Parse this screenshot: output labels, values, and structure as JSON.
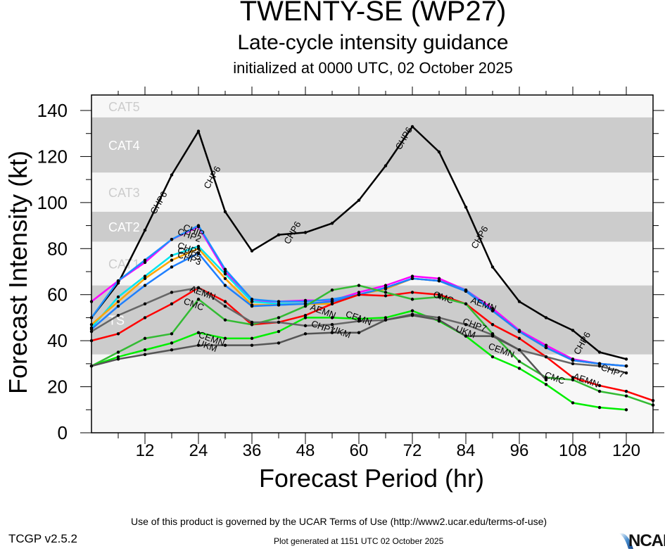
{
  "header": {
    "title": "TWENTY-SE (WP27)",
    "subtitle": "Late-cycle intensity guidance",
    "init_line": "initialized at 0000 UTC, 02 October 2025"
  },
  "footer": {
    "terms": "Use of this product is governed by the UCAR Terms of Use (http://www2.ucar.edu/terms-of-use)",
    "version": "TCGP v2.5.2",
    "generated": "Plot generated at 1151 UTC   02 October 2025",
    "logo": "NCAR"
  },
  "chart_data": {
    "type": "line",
    "title": "TWENTY-SE (WP27) Late-cycle intensity guidance",
    "xlabel": "Forecast Period (hr)",
    "ylabel": "Forecast Intensity (kt)",
    "xlim": [
      0,
      126
    ],
    "ylim": [
      0,
      147
    ],
    "xticks": [
      12,
      24,
      36,
      48,
      60,
      72,
      84,
      96,
      108,
      120
    ],
    "yticks": [
      0,
      20,
      40,
      60,
      80,
      100,
      120,
      140
    ],
    "grid": false,
    "legend": "inline line labels",
    "categories_bands": [
      {
        "name": "CAT5",
        "from": 137,
        "to": 147,
        "shade": "light"
      },
      {
        "name": "CAT4",
        "from": 113,
        "to": 137,
        "shade": "dark"
      },
      {
        "name": "CAT3",
        "from": 96,
        "to": 113,
        "shade": "light"
      },
      {
        "name": "CAT2",
        "from": 83,
        "to": 96,
        "shade": "dark"
      },
      {
        "name": "CAT1",
        "from": 64,
        "to": 83,
        "shade": "light"
      },
      {
        "name": "TS",
        "from": 34,
        "to": 64,
        "shade": "dark"
      },
      {
        "name": "",
        "from": 0,
        "to": 34,
        "shade": "light"
      }
    ],
    "band_colors": {
      "light": "#f7f7f7",
      "dark": "#cccccc"
    },
    "x": [
      0,
      6,
      12,
      18,
      24,
      30,
      36,
      42,
      48,
      54,
      60,
      66,
      72,
      78,
      84,
      90,
      96,
      102,
      108,
      114,
      120,
      126
    ],
    "series": [
      {
        "name": "CHP6",
        "color": "#000000",
        "values": [
          50,
          65,
          88,
          112,
          131,
          96,
          79,
          86,
          87,
          91,
          101,
          116,
          133,
          122,
          98,
          72,
          57,
          50,
          44.5,
          35,
          32,
          null
        ],
        "labels": [
          [
            15,
            100
          ],
          [
            27,
            111
          ],
          [
            45,
            87
          ],
          [
            70,
            128
          ],
          [
            87,
            85
          ],
          [
            110,
            39
          ]
        ]
      },
      {
        "name": "CHIP",
        "color": "#ff00ff",
        "values": [
          57,
          66,
          74,
          84,
          89.5,
          70,
          57,
          57,
          57.5,
          57.5,
          61,
          64,
          68,
          67,
          62,
          54,
          44.5,
          38,
          32,
          30,
          29,
          null
        ],
        "labels": [
          [
            23,
            88
          ]
        ]
      },
      {
        "name": "CHP2",
        "color": "#1e90ff",
        "values": [
          50,
          66,
          75,
          84,
          90,
          71,
          58,
          57,
          57,
          58,
          60,
          63,
          67,
          66,
          62,
          53,
          44,
          37,
          31.5,
          30,
          29,
          null
        ],
        "labels": [
          [
            22,
            86
          ]
        ]
      },
      {
        "name": "CHP4",
        "color": "#00e5ee",
        "values": [
          45.6,
          59,
          68,
          77,
          81,
          69,
          57,
          56,
          56,
          57,
          60,
          63,
          67,
          66,
          61.5,
          53,
          44,
          37,
          31.5,
          30,
          29,
          null
        ],
        "labels": [
          [
            22,
            80
          ]
        ]
      },
      {
        "name": "CHP5",
        "color": "#ffa500",
        "values": [
          47,
          57,
          67,
          75,
          80,
          67,
          55.5,
          55.5,
          56,
          56,
          60,
          62.5,
          67,
          66,
          61.5,
          53,
          44,
          37,
          31.5,
          30,
          29,
          null
        ],
        "labels": [
          [
            22,
            78
          ]
        ]
      },
      {
        "name": "CHP3",
        "color": "#1e7fff",
        "values": [
          45,
          55,
          64,
          72,
          78,
          64,
          55,
          55.5,
          56,
          57,
          60,
          63,
          67,
          66,
          61.5,
          53,
          44,
          37,
          31.5,
          30,
          29,
          null
        ],
        "labels": [
          [
            22,
            76
          ]
        ]
      },
      {
        "name": "AEMN",
        "color": "#ff0000",
        "values": [
          40,
          43,
          50,
          56,
          63,
          57,
          47,
          48,
          51,
          56,
          60,
          59.5,
          61,
          60,
          56,
          47,
          41,
          33,
          24,
          20.5,
          18,
          14
        ],
        "labels": [
          [
            25,
            61
          ],
          [
            52,
            53
          ],
          [
            88,
            56
          ],
          [
            111,
            23
          ]
        ]
      },
      {
        "name": "CMC",
        "color": "#33bb33",
        "values": [
          29,
          35,
          41,
          43,
          58,
          49,
          47,
          50,
          55,
          62,
          64,
          61,
          58,
          59,
          56,
          43,
          31,
          24,
          23,
          18,
          16,
          12
        ],
        "labels": [
          [
            23,
            56
          ],
          [
            79,
            59
          ],
          [
            104,
            24
          ]
        ]
      },
      {
        "name": "CEMN",
        "color": "#00ee00",
        "values": [
          29,
          33,
          36,
          39,
          43.5,
          41,
          41,
          44,
          50,
          50,
          49.5,
          50,
          53,
          48.5,
          42,
          33,
          28,
          21,
          13,
          11,
          10,
          null
        ],
        "labels": [
          [
            27,
            41
          ],
          [
            60,
            50
          ],
          [
            92,
            36
          ]
        ]
      },
      {
        "name": "CHP7",
        "color": "#666666",
        "values": [
          44,
          51,
          56,
          61,
          63,
          55,
          48,
          48,
          46.5,
          47,
          48.5,
          49,
          51.5,
          50,
          47,
          42.5,
          36,
          33,
          30,
          29,
          26,
          null
        ],
        "labels": [
          [
            52,
            46
          ],
          [
            86,
            47
          ],
          [
            117,
            27
          ]
        ]
      },
      {
        "name": "UKM",
        "color": "#555555",
        "values": [
          29,
          32,
          34,
          36,
          38,
          38,
          38,
          39,
          43,
          43.5,
          43.5,
          49,
          51,
          49,
          42,
          42,
          36,
          23,
          null,
          null,
          null,
          null
        ],
        "labels": [
          [
            26,
            38
          ],
          [
            56,
            44
          ],
          [
            84,
            44
          ]
        ]
      }
    ]
  }
}
